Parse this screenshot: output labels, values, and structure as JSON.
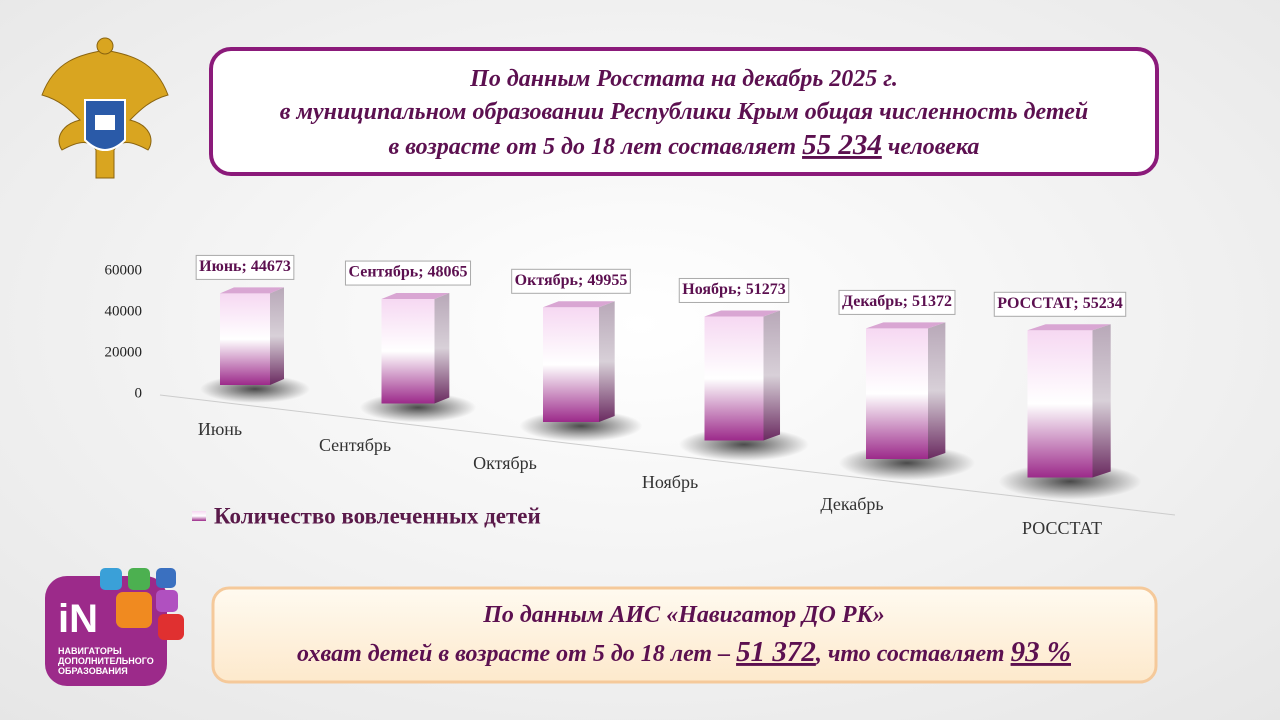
{
  "header": {
    "lines": [
      "По данным Росстата на декабрь 2025 г.",
      "в муниципальном образовании Республики Крым общая численность детей",
      "в возрасте от 5 до 18 лет составляет"
    ],
    "number": "55 234",
    "tail": "человека"
  },
  "chart_data": {
    "type": "bar3d",
    "categories": [
      "Июнь",
      "Сентябрь",
      "Октябрь",
      "Ноябрь",
      "Декабрь",
      "РОССТАТ"
    ],
    "series": [
      {
        "name": "Количество вовлеченных детей",
        "color": "#9c2a8a",
        "values": [
          44673,
          48065,
          49955,
          51273,
          51372,
          55234
        ],
        "value_labels": [
          "Июнь; 44673",
          "Сентябрь; 48065",
          "Октябрь; 49955",
          "Ноябрь; 51273",
          "Декабрь; 51372",
          "РОССТАТ; 55234"
        ]
      }
    ],
    "ylim": [
      0,
      60000
    ],
    "yticks": [
      0,
      20000,
      40000,
      60000
    ],
    "grid": false
  },
  "footer": {
    "line1": "По данным АИС «Навигатор ДО РК»",
    "line2": "охват детей в возрасте от 5 до 18 лет –",
    "number": "51 372",
    "middle": ", что составляет",
    "percent": "93 %"
  },
  "logo": {
    "mark": "iN",
    "text": [
      "НАВИГАТОРЫ",
      "ДОПОЛНИТЕЛЬНОГО",
      "ОБРАЗОВАНИЯ"
    ]
  }
}
